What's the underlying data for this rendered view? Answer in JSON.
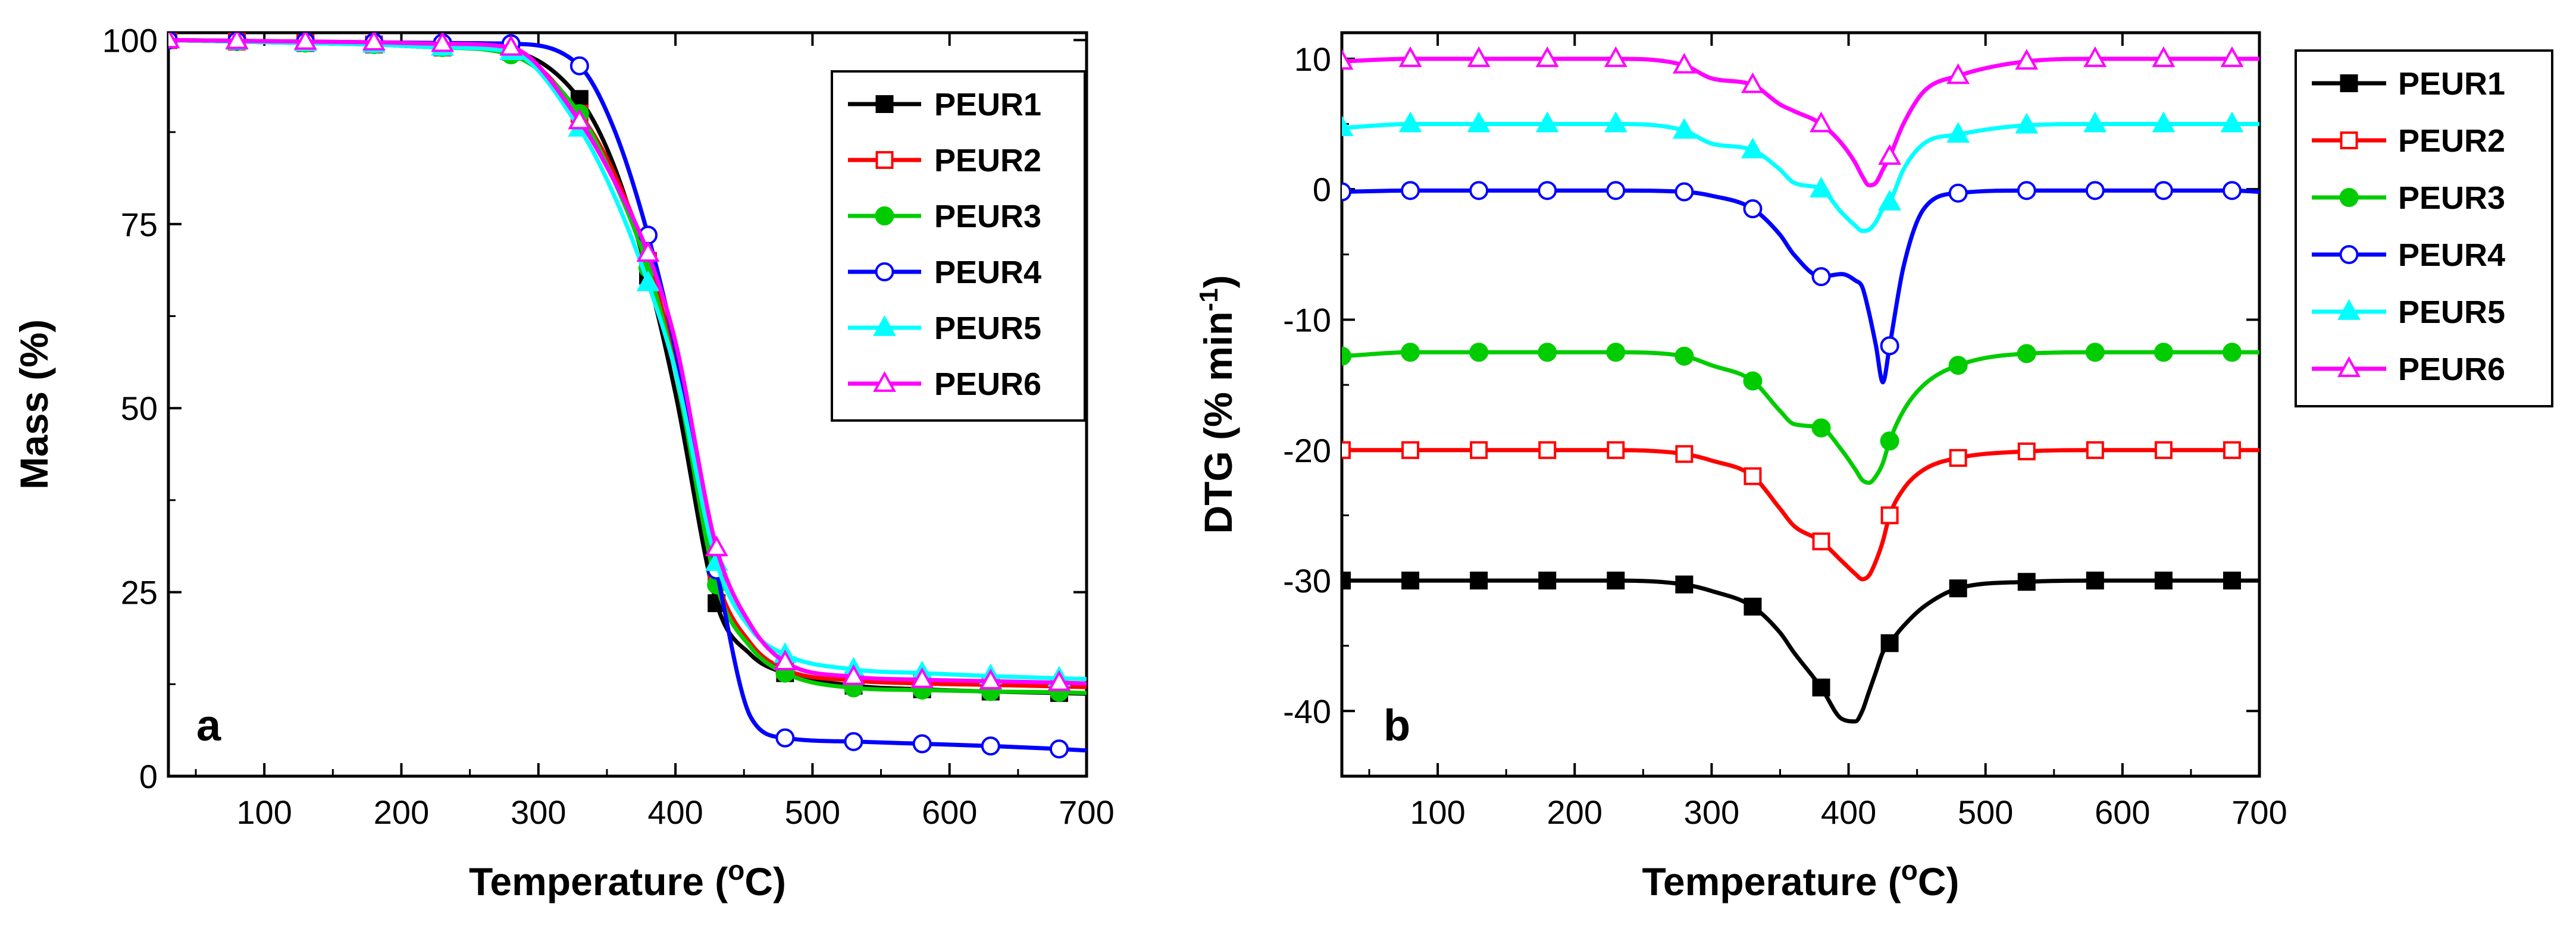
{
  "chart_data": [
    {
      "type": "line",
      "panel_label": "a",
      "xlabel": "Temperature",
      "xlabel_unit": "(oC)",
      "ylabel": "Mass (%)",
      "xlim": [
        30,
        700
      ],
      "ylim": [
        0,
        101
      ],
      "xticks": [
        100,
        200,
        300,
        400,
        500,
        600,
        700
      ],
      "yticks": [
        0,
        25,
        50,
        75,
        100
      ],
      "legend_position": "top-right",
      "grid": false,
      "x": [
        30,
        80,
        130,
        180,
        230,
        280,
        330,
        355,
        380,
        400,
        430,
        455,
        480,
        530,
        580,
        630,
        680,
        700
      ],
      "series": [
        {
          "name": "PEUR1",
          "color": "#000000",
          "marker": "square-filled",
          "values": [
            100,
            99.8,
            99.6,
            99.4,
            99.0,
            98.5,
            92,
            83,
            68,
            52,
            23.5,
            16.5,
            14,
            12.3,
            11.8,
            11.5,
            11.3,
            11.2
          ]
        },
        {
          "name": "PEUR2",
          "color": "#ff0000",
          "marker": "square-open",
          "values": [
            100,
            99.8,
            99.6,
            99.4,
            99.0,
            98.4,
            90,
            82,
            70,
            56,
            27,
            18,
            14.5,
            13,
            12.6,
            12.4,
            12.2,
            12.1
          ]
        },
        {
          "name": "PEUR3",
          "color": "#00cc00",
          "marker": "circle-filled",
          "values": [
            100,
            99.8,
            99.6,
            99.4,
            99.0,
            98,
            90,
            81,
            69,
            55,
            26,
            17.5,
            14,
            12,
            11.7,
            11.5,
            11.4,
            11.3
          ]
        },
        {
          "name": "PEUR4",
          "color": "#0000ff",
          "marker": "circle-open",
          "values": [
            100,
            99.9,
            99.8,
            99.7,
            99.6,
            99.5,
            96.5,
            88,
            73.5,
            58,
            28,
            8,
            5.2,
            4.7,
            4.4,
            4.1,
            3.7,
            3.5
          ]
        },
        {
          "name": "PEUR5",
          "color": "#00ffff",
          "marker": "triangle-filled",
          "values": [
            100,
            99.8,
            99.6,
            99.4,
            99.0,
            98.4,
            88,
            79,
            67,
            55,
            29,
            20,
            16.5,
            14.5,
            14,
            13.6,
            13.3,
            13.2
          ]
        },
        {
          "name": "PEUR6",
          "color": "#ff00ff",
          "marker": "triangle-open",
          "values": [
            100,
            99.9,
            99.8,
            99.7,
            99.5,
            99,
            89,
            81,
            71,
            59,
            31,
            20.5,
            15.5,
            13.5,
            13.1,
            12.9,
            12.7,
            12.6
          ]
        }
      ]
    },
    {
      "type": "line",
      "panel_label": "b",
      "xlabel": "Temperature",
      "xlabel_unit": "(oC)",
      "ylabel": "DTG (% min-1)",
      "xlim": [
        30,
        700
      ],
      "ylim": [
        -45,
        12
      ],
      "xticks": [
        100,
        200,
        300,
        400,
        500,
        600,
        700
      ],
      "yticks": [
        -40,
        -30,
        -20,
        -10,
        0,
        10
      ],
      "legend_position": "top-right",
      "grid": false,
      "x": [
        30,
        80,
        130,
        180,
        230,
        280,
        300,
        330,
        350,
        360,
        380,
        395,
        405,
        410,
        415,
        420,
        425,
        430,
        440,
        455,
        480,
        530,
        580,
        630,
        680,
        700
      ],
      "series": [
        {
          "name": "PEUR1",
          "color": "#000000",
          "marker": "square-filled",
          "values": [
            -30,
            -30,
            -30,
            -30,
            -30,
            -30.3,
            -30.8,
            -32,
            -34,
            -35.5,
            -38.2,
            -40.6,
            -40.8,
            -40,
            -38.5,
            -37,
            -35.5,
            -34.8,
            -33.5,
            -32,
            -30.6,
            -30.1,
            -30,
            -30,
            -30,
            -30
          ]
        },
        {
          "name": "PEUR2",
          "color": "#ff0000",
          "marker": "square-open",
          "values": [
            -20,
            -20,
            -20,
            -20,
            -20,
            -20.3,
            -20.8,
            -22,
            -24.5,
            -25.8,
            -27,
            -28.5,
            -29.5,
            -29.9,
            -29.6,
            -28.5,
            -27,
            -25,
            -23,
            -21.5,
            -20.6,
            -20.1,
            -20,
            -20,
            -20,
            -20
          ]
        },
        {
          "name": "PEUR3",
          "color": "#00cc00",
          "marker": "circle-filled",
          "values": [
            -12.8,
            -12.5,
            -12.5,
            -12.5,
            -12.5,
            -12.8,
            -13.5,
            -14.7,
            -17,
            -18,
            -18.3,
            -20,
            -21.5,
            -22.3,
            -22.5,
            -22,
            -21,
            -19.3,
            -17,
            -15,
            -13.5,
            -12.6,
            -12.5,
            -12.5,
            -12.5,
            -12.5
          ]
        },
        {
          "name": "PEUR4",
          "color": "#0000ff",
          "marker": "circle-open",
          "values": [
            -0.2,
            -0.1,
            -0.1,
            -0.1,
            -0.1,
            -0.2,
            -0.5,
            -1.5,
            -3.5,
            -5,
            -6.7,
            -6.5,
            -7,
            -7.5,
            -9.5,
            -12,
            -14.8,
            -12,
            -6,
            -1.5,
            -0.3,
            -0.1,
            -0.1,
            -0.1,
            -0.1,
            -0.2
          ]
        },
        {
          "name": "PEUR5",
          "color": "#00ffff",
          "marker": "triangle-filled",
          "values": [
            4.7,
            5,
            5,
            5,
            5,
            4.5,
            3.5,
            3,
            1.5,
            0.5,
            0,
            -1.8,
            -2.8,
            -3.2,
            -3.1,
            -2.5,
            -1.5,
            -1,
            1.5,
            3.5,
            4.2,
            4.9,
            5,
            5,
            5,
            5
          ]
        },
        {
          "name": "PEUR6",
          "color": "#ff00ff",
          "marker": "triangle-open",
          "values": [
            9.8,
            10,
            10,
            10,
            10,
            9.5,
            8.5,
            8,
            6.5,
            6,
            5,
            3.5,
            2,
            1,
            0.3,
            0.5,
            1.5,
            2.5,
            5,
            7.5,
            8.7,
            9.8,
            10,
            10,
            10,
            10
          ]
        }
      ]
    }
  ]
}
